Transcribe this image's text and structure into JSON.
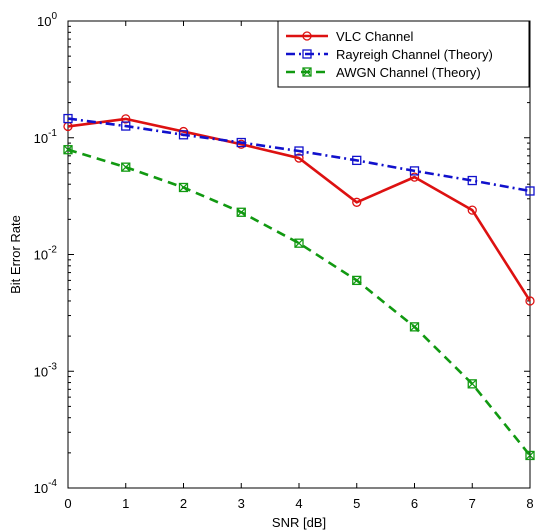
{
  "chart_data": {
    "type": "line",
    "xlabel": "SNR [dB]",
    "ylabel": "Bit Error Rate",
    "x": [
      0,
      1,
      2,
      3,
      4,
      5,
      6,
      7,
      8
    ],
    "xlim": [
      0,
      8
    ],
    "ylim": [
      0.0001,
      1
    ],
    "yscale": "log",
    "x_ticks": [
      "0",
      "1",
      "2",
      "3",
      "4",
      "5",
      "6",
      "7",
      "8"
    ],
    "y_ticks": [
      {
        "value": 1,
        "base": "10",
        "exp": "0"
      },
      {
        "value": 0.1,
        "base": "10",
        "exp": "-1"
      },
      {
        "value": 0.01,
        "base": "10",
        "exp": "-2"
      },
      {
        "value": 0.001,
        "base": "10",
        "exp": "-3"
      },
      {
        "value": 0.0001,
        "base": "10",
        "exp": "-4"
      }
    ],
    "grid": false,
    "legend_position": "top-right",
    "series": [
      {
        "name": "VLC Channel",
        "color": "#dd1111",
        "style": "solid",
        "marker": "circle",
        "values": [
          0.125,
          0.145,
          0.113,
          0.088,
          0.067,
          0.028,
          0.046,
          0.024,
          0.004
        ]
      },
      {
        "name": "Rayreigh Channel (Theory)",
        "color": "#1111cc",
        "style": "dashdot",
        "marker": "square",
        "values": [
          0.146,
          0.126,
          0.106,
          0.091,
          0.077,
          0.064,
          0.052,
          0.043,
          0.035
        ]
      },
      {
        "name": "AWGN Channel (Theory)",
        "color": "#119911",
        "style": "dashed",
        "marker": "square-x",
        "values": [
          0.079,
          0.056,
          0.0375,
          0.023,
          0.0125,
          0.006,
          0.0024,
          0.00078,
          0.00019
        ]
      }
    ]
  }
}
